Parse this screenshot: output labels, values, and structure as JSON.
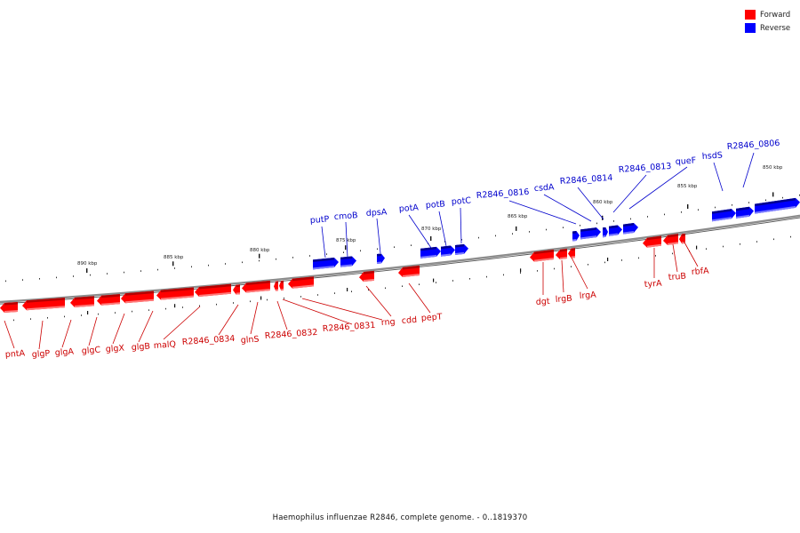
{
  "colors": {
    "forward": "#ff0000",
    "forward_dark": "#b40000",
    "forward_light": "#ff7a7a",
    "reverse": "#0000ff",
    "reverse_dark": "#000090",
    "reverse_light": "#7a7aff",
    "backbone": "#8c8c8c",
    "label_forward": "#cc0000",
    "label_reverse": "#0000cc"
  },
  "legend": [
    {
      "label": "Forward",
      "color": "#ff0000"
    },
    {
      "label": "Reverse",
      "color": "#0000ff"
    }
  ],
  "title": "Haemophilus influenzae R2846, complete genome. - 0..1819370",
  "scale_labels": [
    "890 kbp",
    "885 kbp",
    "880 kbp",
    "875 kbp",
    "870 kbp",
    "865 kbp",
    "860 kbp",
    "855 kbp",
    "850 kbp"
  ],
  "genes_forward": [
    "pntA",
    "glgP",
    "glgA",
    "glgC",
    "glgX",
    "glgB",
    "malQ",
    "R2846_0834",
    "glnS",
    "R2846_0832",
    "R2846_0831",
    "rng",
    "cdd",
    "pepT",
    "dgt",
    "lrgB",
    "lrgA",
    "tyrA",
    "truB",
    "rbfA"
  ],
  "genes_reverse": [
    "putP",
    "cmoB",
    "dpsA",
    "potA",
    "potB",
    "potC",
    "R2846_0816",
    "csdA",
    "R2846_0814",
    "R2846_0813",
    "queF",
    "hsdS",
    "R2846_0806"
  ]
}
